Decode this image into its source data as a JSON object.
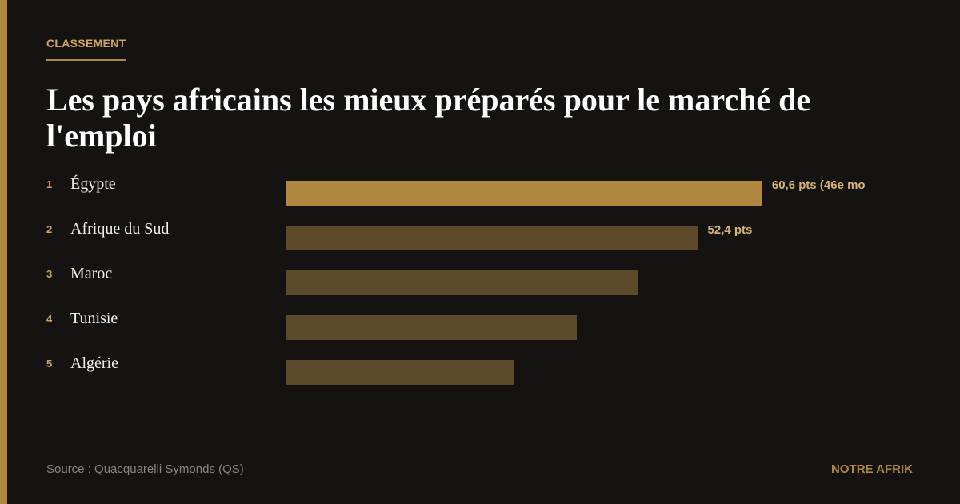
{
  "chart_data": {
    "type": "bar",
    "kicker": "CLASSEMENT",
    "title": "Les pays africains les mieux préparés pour le marché de l'emploi",
    "ranks": [
      1,
      2,
      3,
      4,
      5
    ],
    "categories": [
      "Égypte",
      "Afrique du Sud",
      "Maroc",
      "Tunisie",
      "Algérie"
    ],
    "values": [
      60.6,
      52.4,
      44.9,
      37.0,
      29.1
    ],
    "value_labels": [
      "60,6 pts (46e mo",
      "52,4 pts",
      null,
      null,
      null
    ],
    "colors": [
      "#b0873e",
      "#5c4a2b",
      "#5c4a2b",
      "#5c4a2b",
      "#5c4a2b"
    ],
    "xlim": [
      0,
      80
    ],
    "source": "Source : Quacquarelli Symonds (QS)",
    "brand": "NOTRE AFRIK"
  }
}
